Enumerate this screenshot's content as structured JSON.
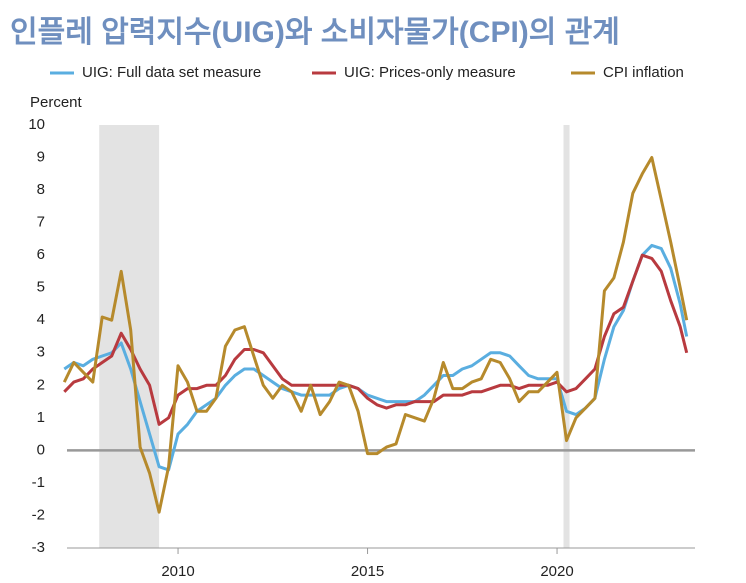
{
  "chart_data": {
    "type": "line",
    "title": "인플레 압력지수(UIG)와 소비자물가(CPI)의 관계",
    "y_label": "Percent",
    "x": [
      2007,
      2007.25,
      2007.5,
      2007.75,
      2008,
      2008.25,
      2008.5,
      2008.75,
      2009,
      2009.25,
      2009.5,
      2009.75,
      2010,
      2010.25,
      2010.5,
      2010.75,
      2011,
      2011.25,
      2011.5,
      2011.75,
      2012,
      2012.25,
      2012.5,
      2012.75,
      2013,
      2013.25,
      2013.5,
      2013.75,
      2014,
      2014.25,
      2014.5,
      2014.75,
      2015,
      2015.25,
      2015.5,
      2015.75,
      2016,
      2016.25,
      2016.5,
      2016.75,
      2017,
      2017.25,
      2017.5,
      2017.75,
      2018,
      2018.25,
      2018.5,
      2018.75,
      2019,
      2019.25,
      2019.5,
      2019.75,
      2020,
      2020.25,
      2020.5,
      2020.75,
      2021,
      2021.25,
      2021.5,
      2021.75,
      2022,
      2022.25,
      2022.5,
      2022.75,
      2023,
      2023.25,
      2023.42
    ],
    "series": [
      {
        "name": "UIG: Full data set measure",
        "color": "#5aaee0",
        "values": [
          2.5,
          2.7,
          2.6,
          2.8,
          2.9,
          3.0,
          3.3,
          2.5,
          1.5,
          0.5,
          -0.5,
          -0.6,
          0.5,
          0.8,
          1.2,
          1.4,
          1.6,
          2.0,
          2.3,
          2.5,
          2.5,
          2.3,
          2.1,
          1.9,
          1.8,
          1.7,
          1.7,
          1.7,
          1.7,
          1.9,
          2.0,
          1.9,
          1.7,
          1.6,
          1.5,
          1.5,
          1.5,
          1.5,
          1.7,
          2.0,
          2.3,
          2.3,
          2.5,
          2.6,
          2.8,
          3.0,
          3.0,
          2.9,
          2.6,
          2.3,
          2.2,
          2.2,
          2.2,
          1.2,
          1.1,
          1.3,
          1.6,
          2.8,
          3.8,
          4.3,
          5.2,
          6.0,
          6.3,
          6.2,
          5.6,
          4.5,
          3.5
        ]
      },
      {
        "name": "UIG: Prices-only measure",
        "color": "#b83a3f",
        "values": [
          1.8,
          2.1,
          2.2,
          2.5,
          2.7,
          2.9,
          3.6,
          3.1,
          2.5,
          2.0,
          0.8,
          1.0,
          1.7,
          1.9,
          1.9,
          2.0,
          2.0,
          2.3,
          2.8,
          3.1,
          3.1,
          3.0,
          2.6,
          2.2,
          2.0,
          2.0,
          2.0,
          2.0,
          2.0,
          2.0,
          2.0,
          1.9,
          1.6,
          1.4,
          1.3,
          1.4,
          1.4,
          1.5,
          1.5,
          1.5,
          1.7,
          1.7,
          1.7,
          1.8,
          1.8,
          1.9,
          2.0,
          2.0,
          1.9,
          2.0,
          2.0,
          2.0,
          2.1,
          1.8,
          1.9,
          2.2,
          2.5,
          3.5,
          4.2,
          4.4,
          5.2,
          6.0,
          5.9,
          5.5,
          4.6,
          3.8,
          3.0
        ]
      },
      {
        "name": "CPI inflation",
        "color": "#b68a2c",
        "values": [
          2.1,
          2.7,
          2.4,
          2.1,
          4.1,
          4.0,
          5.5,
          3.7,
          0.1,
          -0.7,
          -1.9,
          -0.5,
          2.6,
          2.1,
          1.2,
          1.2,
          1.6,
          3.2,
          3.7,
          3.8,
          2.9,
          2.0,
          1.6,
          2.0,
          1.8,
          1.2,
          2.0,
          1.1,
          1.5,
          2.1,
          2.0,
          1.2,
          -0.1,
          -0.1,
          0.1,
          0.2,
          1.1,
          1.0,
          0.9,
          1.6,
          2.7,
          1.9,
          1.9,
          2.1,
          2.2,
          2.8,
          2.7,
          2.2,
          1.5,
          1.8,
          1.8,
          2.1,
          2.4,
          0.3,
          1.0,
          1.3,
          1.6,
          4.9,
          5.3,
          6.4,
          7.9,
          8.5,
          9.0,
          7.7,
          6.4,
          5.0,
          4.0
        ]
      }
    ],
    "xlim": [
      2007.07,
      2023.64
    ],
    "xticks": [
      2010,
      2015,
      2020
    ],
    "ylim": [
      -3,
      10
    ],
    "yticks": [
      -3,
      -2,
      -1,
      0,
      1,
      2,
      3,
      4,
      5,
      6,
      7,
      8,
      9,
      10
    ],
    "shaded": [
      [
        2007.92,
        2009.5
      ],
      [
        2020.17,
        2020.33
      ]
    ],
    "shade_color": "#e3e3e3",
    "zero_line": true,
    "legend": "top"
  }
}
